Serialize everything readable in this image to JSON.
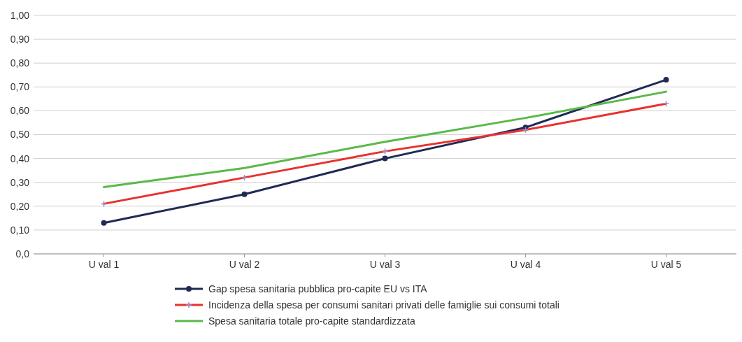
{
  "chart_data": {
    "type": "line",
    "categories": [
      "U val 1",
      "U val 2",
      "U val 3",
      "U val 4",
      "U val 5"
    ],
    "series": [
      {
        "name": "Gap spesa sanitaria pubblica pro-capite EU vs ITA",
        "color": "#1f2a55",
        "values": [
          0.13,
          0.25,
          0.4,
          0.53,
          0.73
        ],
        "marker": "circle"
      },
      {
        "name": "Incidenza della spesa per consumi sanitari privati delle famiglie sui consumi totali",
        "color": "#e8312f",
        "values": [
          0.21,
          0.32,
          0.43,
          0.52,
          0.63
        ],
        "marker": "cross"
      },
      {
        "name": "Spesa sanitaria totale pro-capite standardizzata",
        "color": "#5ab947",
        "values": [
          0.28,
          0.36,
          0.47,
          0.57,
          0.68
        ],
        "marker": "none"
      }
    ],
    "ylim": [
      0,
      1
    ],
    "yticks": [
      {
        "value": 0,
        "label": "0,0"
      },
      {
        "value": 0.1,
        "label": "0,10"
      },
      {
        "value": 0.2,
        "label": "0,20"
      },
      {
        "value": 0.3,
        "label": "0,30"
      },
      {
        "value": 0.4,
        "label": "0,40"
      },
      {
        "value": 0.5,
        "label": "0,50"
      },
      {
        "value": 0.6,
        "label": "0,60"
      },
      {
        "value": 0.7,
        "label": "0,70"
      },
      {
        "value": 0.8,
        "label": "0,80"
      },
      {
        "value": 0.9,
        "label": "0,90"
      },
      {
        "value": 1,
        "label": "1,00"
      }
    ],
    "grid": "y",
    "legend": "bottom",
    "line_style": "solid"
  }
}
